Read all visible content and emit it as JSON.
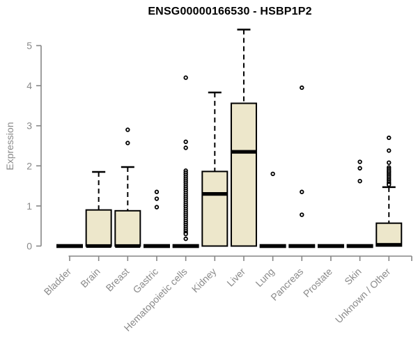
{
  "chart_data": {
    "type": "boxplot",
    "title": "ENSG00000166530 - HSBP1P2",
    "ylabel": "Expression",
    "xlabel": "",
    "ylim": [
      0,
      5.45
    ],
    "yticks": [
      0,
      1,
      2,
      3,
      4,
      5
    ],
    "grid": false,
    "legend": "none",
    "box_fill": "#EDE7CB",
    "box_stroke": "#000000",
    "axis_color": "#868686",
    "label_color": "#8a8a8a",
    "categories": [
      "Bladder",
      "Brain",
      "Breast",
      "Gastric",
      "Hematopoietic cells",
      "Kidney",
      "Liver",
      "Lung",
      "Pancreas",
      "Prostate",
      "Skin",
      "Unknown / Other"
    ],
    "series": [
      {
        "category": "Bladder",
        "q1": 0,
        "median": 0,
        "q3": 0,
        "whisker_low": 0,
        "whisker_high": 0,
        "outliers": []
      },
      {
        "category": "Brain",
        "q1": 0,
        "median": 0,
        "q3": 0.9,
        "whisker_low": 0,
        "whisker_high": 1.85,
        "outliers": []
      },
      {
        "category": "Breast",
        "q1": 0,
        "median": 0,
        "q3": 0.88,
        "whisker_low": 0,
        "whisker_high": 1.97,
        "outliers": [
          2.9,
          2.57
        ]
      },
      {
        "category": "Gastric",
        "q1": 0,
        "median": 0,
        "q3": 0,
        "whisker_low": 0,
        "whisker_high": 0,
        "outliers": [
          1.35,
          1.18,
          0.97
        ]
      },
      {
        "category": "Hematopoietic cells",
        "q1": 0,
        "median": 0,
        "q3": 0,
        "whisker_low": 0,
        "whisker_high": 0,
        "outliers": [
          4.2,
          2.6,
          2.45,
          1.88,
          1.83,
          1.78,
          1.73,
          1.68,
          1.63,
          1.58,
          1.53,
          1.48,
          1.43,
          1.38,
          1.33,
          1.28,
          1.23,
          1.18,
          1.13,
          1.08,
          1.03,
          0.98,
          0.93,
          0.88,
          0.83,
          0.78,
          0.73,
          0.68,
          0.63,
          0.58,
          0.53,
          0.48,
          0.43,
          0.38,
          0.33,
          0.3,
          0.18
        ]
      },
      {
        "category": "Kidney",
        "q1": 0,
        "median": 1.3,
        "q3": 1.86,
        "whisker_low": 0,
        "whisker_high": 3.83,
        "outliers": []
      },
      {
        "category": "Liver",
        "q1": 0,
        "median": 2.35,
        "q3": 3.56,
        "whisker_low": 0,
        "whisker_high": 5.4,
        "outliers": []
      },
      {
        "category": "Lung",
        "q1": 0,
        "median": 0,
        "q3": 0,
        "whisker_low": 0,
        "whisker_high": 0,
        "outliers": [
          1.8
        ]
      },
      {
        "category": "Pancreas",
        "q1": 0,
        "median": 0,
        "q3": 0,
        "whisker_low": 0,
        "whisker_high": 0,
        "outliers": [
          3.95,
          1.35,
          0.78
        ]
      },
      {
        "category": "Prostate",
        "q1": 0,
        "median": 0,
        "q3": 0,
        "whisker_low": 0,
        "whisker_high": 0,
        "outliers": []
      },
      {
        "category": "Skin",
        "q1": 0,
        "median": 0,
        "q3": 0,
        "whisker_low": 0,
        "whisker_high": 0,
        "outliers": [
          2.1,
          1.94,
          1.62
        ]
      },
      {
        "category": "Unknown / Other",
        "q1": 0,
        "median": 0.03,
        "q3": 0.57,
        "whisker_low": 0,
        "whisker_high": 1.47,
        "outliers": [
          2.7,
          2.38,
          2.08,
          1.96,
          1.92,
          1.88,
          1.84,
          1.8,
          1.76,
          1.72,
          1.68,
          1.64,
          1.6,
          1.56,
          1.53
        ]
      }
    ]
  }
}
